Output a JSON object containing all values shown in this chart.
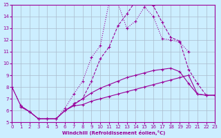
{
  "xlabel": "Windchill (Refroidissement éolien,°C)",
  "background_color": "#cceeff",
  "grid_color": "#aabbcc",
  "line_color": "#990099",
  "xlim": [
    0,
    23
  ],
  "ylim": [
    5,
    15
  ],
  "xticks": [
    0,
    1,
    2,
    3,
    4,
    5,
    6,
    7,
    8,
    9,
    10,
    11,
    12,
    13,
    14,
    15,
    16,
    17,
    18,
    19,
    20,
    21,
    22,
    23
  ],
  "yticks": [
    5,
    6,
    7,
    8,
    9,
    10,
    11,
    12,
    13,
    14,
    15
  ],
  "lines": [
    {
      "x": [
        0,
        1,
        2,
        3,
        4,
        5,
        6,
        7,
        8,
        9,
        10,
        11,
        12,
        13,
        14,
        15,
        16,
        17,
        18,
        19,
        20
      ],
      "y": [
        8.0,
        6.4,
        5.9,
        5.3,
        5.3,
        5.3,
        6.2,
        7.4,
        8.5,
        10.5,
        11.5,
        15.2,
        15.1,
        13.0,
        13.6,
        14.8,
        14.0,
        12.1,
        12.0,
        11.8,
        11.0
      ]
    },
    {
      "x": [
        1,
        2,
        3,
        4,
        5,
        6,
        7,
        8,
        9,
        10,
        11,
        12,
        13,
        14,
        15,
        16,
        17,
        18,
        19,
        20,
        21,
        22,
        23
      ],
      "y": [
        6.3,
        5.9,
        5.3,
        5.3,
        5.3,
        6.0,
        6.4,
        6.5,
        6.8,
        7.0,
        7.2,
        7.4,
        7.6,
        7.8,
        8.0,
        8.2,
        8.4,
        8.6,
        8.8,
        9.0,
        7.4,
        7.3,
        7.3
      ]
    },
    {
      "x": [
        7,
        8,
        9,
        10,
        11,
        12,
        13,
        14,
        15,
        16,
        17,
        18,
        19,
        20,
        21,
        22
      ],
      "y": [
        6.6,
        7.0,
        8.5,
        10.4,
        11.4,
        13.2,
        14.2,
        15.3,
        15.2,
        14.9,
        13.5,
        12.2,
        11.9,
        9.5,
        8.3,
        7.3
      ]
    },
    {
      "x": [
        0,
        1,
        2,
        3,
        4,
        5,
        6,
        7,
        8,
        9,
        10,
        11,
        12,
        13,
        14,
        15,
        16,
        17,
        18,
        19,
        20,
        21,
        22,
        23
      ],
      "y": [
        8.0,
        6.4,
        5.9,
        5.3,
        5.3,
        5.3,
        6.0,
        6.5,
        7.0,
        7.5,
        7.9,
        8.2,
        8.5,
        8.8,
        9.0,
        9.2,
        9.4,
        9.5,
        9.6,
        9.3,
        8.3,
        7.4,
        7.3,
        7.3
      ]
    }
  ]
}
